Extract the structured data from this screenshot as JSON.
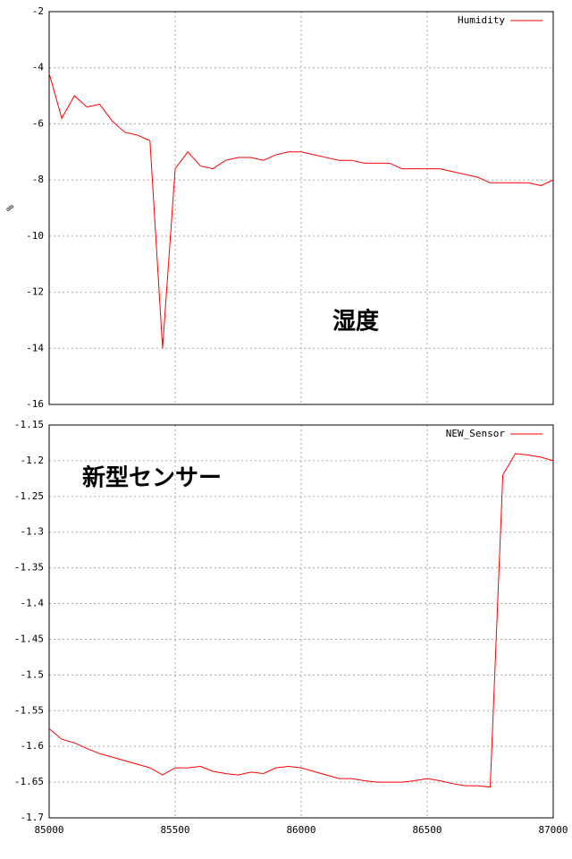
{
  "chart_data": [
    {
      "type": "line",
      "y_label": "%",
      "annotation": "湿度",
      "x": [
        85000,
        85050,
        85100,
        85150,
        85200,
        85250,
        85300,
        85350,
        85400,
        85450,
        85500,
        85550,
        85600,
        85650,
        85700,
        85750,
        85800,
        85850,
        85900,
        85950,
        86000,
        86050,
        86100,
        86150,
        86200,
        86250,
        86300,
        86350,
        86400,
        86450,
        86500,
        86550,
        86600,
        86650,
        86700,
        86750,
        86800,
        86850,
        86900,
        86950,
        87000
      ],
      "series": [
        {
          "name": "Humidity",
          "color": "#ff0000",
          "values": [
            -4.2,
            -5.8,
            -5.0,
            -5.4,
            -5.3,
            -5.9,
            -6.3,
            -6.4,
            -6.6,
            -14.0,
            -7.6,
            -7.0,
            -7.5,
            -7.6,
            -7.3,
            -7.2,
            -7.2,
            -7.3,
            -7.1,
            -7.0,
            -7.0,
            -7.1,
            -7.2,
            -7.3,
            -7.3,
            -7.4,
            -7.4,
            -7.4,
            -7.6,
            -7.6,
            -7.6,
            -7.6,
            -7.7,
            -7.8,
            -7.9,
            -8.1,
            -8.1,
            -8.1,
            -8.1,
            -8.2,
            -8.0
          ]
        }
      ],
      "xlim": [
        85000,
        87000
      ],
      "xticks": [
        85000,
        85500,
        86000,
        86500,
        87000
      ],
      "show_xtick_labels": false,
      "ylim": [
        -16,
        -2
      ],
      "yticks": [
        -16,
        -14,
        -12,
        -10,
        -8,
        -6,
        -4,
        -2
      ],
      "grid": true,
      "legend": "top-right"
    },
    {
      "type": "line",
      "annotation": "新型センサー",
      "x": [
        85000,
        85050,
        85100,
        85150,
        85200,
        85250,
        85300,
        85350,
        85400,
        85450,
        85500,
        85550,
        85600,
        85650,
        85700,
        85750,
        85800,
        85850,
        85900,
        85950,
        86000,
        86050,
        86100,
        86150,
        86200,
        86250,
        86300,
        86350,
        86400,
        86450,
        86500,
        86550,
        86600,
        86650,
        86700,
        86750,
        86800,
        86850,
        86900,
        86950,
        87000
      ],
      "series": [
        {
          "name": "NEW_Sensor",
          "color": "#ff0000",
          "values": [
            -1.575,
            -1.59,
            -1.595,
            -1.603,
            -1.61,
            -1.615,
            -1.62,
            -1.625,
            -1.63,
            -1.64,
            -1.63,
            -1.63,
            -1.628,
            -1.635,
            -1.638,
            -1.64,
            -1.636,
            -1.638,
            -1.63,
            -1.628,
            -1.63,
            -1.635,
            -1.64,
            -1.645,
            -1.645,
            -1.648,
            -1.65,
            -1.65,
            -1.65,
            -1.648,
            -1.645,
            -1.648,
            -1.652,
            -1.655,
            -1.655,
            -1.657,
            -1.22,
            -1.19,
            -1.192,
            -1.195,
            -1.2
          ]
        }
      ],
      "xlim": [
        85000,
        87000
      ],
      "xticks": [
        85000,
        85500,
        86000,
        86500,
        87000
      ],
      "show_xtick_labels": true,
      "ylim": [
        -1.7,
        -1.15
      ],
      "yticks": [
        -1.7,
        -1.65,
        -1.6,
        -1.55,
        -1.5,
        -1.45,
        -1.4,
        -1.35,
        -1.3,
        -1.25,
        -1.2,
        -1.15
      ],
      "grid": true,
      "legend": "top-right"
    }
  ]
}
